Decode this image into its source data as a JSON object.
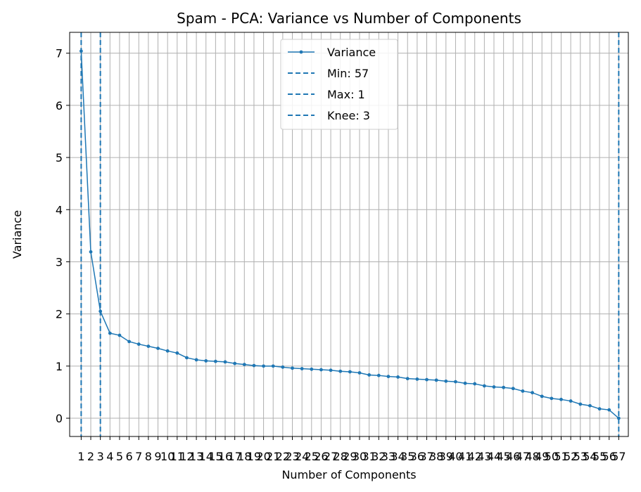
{
  "chart_data": {
    "type": "line",
    "title": "Spam - PCA: Variance vs Number of Components",
    "xlabel": "Number of Components",
    "ylabel": "Variance",
    "ylim": [
      -0.35,
      7.4
    ],
    "xlim": [
      -0.2,
      58.0
    ],
    "grid": true,
    "legend_position": "top-center",
    "x": [
      1,
      2,
      3,
      4,
      5,
      6,
      7,
      8,
      9,
      10,
      11,
      12,
      13,
      14,
      15,
      16,
      17,
      18,
      19,
      20,
      21,
      22,
      23,
      24,
      25,
      26,
      27,
      28,
      29,
      30,
      31,
      32,
      33,
      34,
      35,
      36,
      37,
      38,
      39,
      40,
      41,
      42,
      43,
      44,
      45,
      46,
      47,
      48,
      49,
      50,
      51,
      52,
      53,
      54,
      55,
      56,
      57
    ],
    "x_tick_labels": [
      "1",
      "2",
      "3",
      "4",
      "5",
      "6",
      "7",
      "8",
      "9",
      "10",
      "11",
      "12",
      "13",
      "14",
      "15",
      "16",
      "17",
      "18",
      "19",
      "20",
      "21",
      "22",
      "23",
      "24",
      "25",
      "26",
      "27",
      "28",
      "29",
      "30",
      "31",
      "32",
      "33",
      "34",
      "35",
      "36",
      "37",
      "38",
      "39",
      "40",
      "41",
      "42",
      "43",
      "44",
      "45",
      "46",
      "47",
      "48",
      "49",
      "50",
      "51",
      "52",
      "53",
      "54",
      "55",
      "56",
      "57"
    ],
    "y_ticks": [
      0,
      1,
      2,
      3,
      4,
      5,
      6,
      7
    ],
    "y_tick_labels": [
      "0",
      "1",
      "2",
      "3",
      "4",
      "5",
      "6",
      "7"
    ],
    "series": [
      {
        "name": "Variance",
        "color": "#1f77b4",
        "values": [
          7.04,
          3.19,
          2.05,
          1.63,
          1.59,
          1.47,
          1.42,
          1.38,
          1.34,
          1.29,
          1.25,
          1.16,
          1.12,
          1.1,
          1.09,
          1.08,
          1.05,
          1.03,
          1.01,
          1.0,
          1.0,
          0.98,
          0.96,
          0.95,
          0.94,
          0.93,
          0.92,
          0.9,
          0.89,
          0.87,
          0.83,
          0.82,
          0.8,
          0.79,
          0.76,
          0.75,
          0.74,
          0.73,
          0.71,
          0.7,
          0.67,
          0.66,
          0.62,
          0.6,
          0.59,
          0.57,
          0.52,
          0.49,
          0.42,
          0.38,
          0.36,
          0.33,
          0.27,
          0.24,
          0.18,
          0.16,
          0.0
        ]
      }
    ],
    "vlines": [
      {
        "name": "Min: 57",
        "x": 57,
        "color": "#1f77b4"
      },
      {
        "name": "Max: 1",
        "x": 1,
        "color": "#1f77b4"
      },
      {
        "name": "Knee: 3",
        "x": 3,
        "color": "#1f77b4"
      }
    ]
  }
}
